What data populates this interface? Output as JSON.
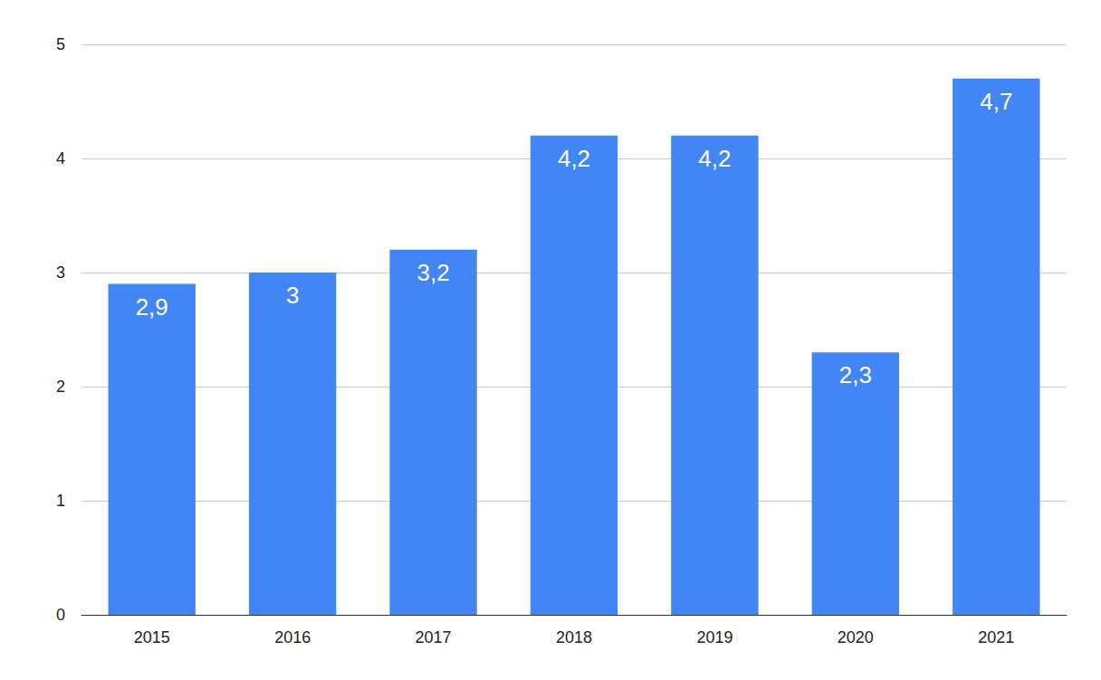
{
  "chart_data": {
    "type": "bar",
    "categories": [
      "2015",
      "2016",
      "2017",
      "2018",
      "2019",
      "2020",
      "2021"
    ],
    "values": [
      2.9,
      3,
      3.2,
      4.2,
      4.2,
      2.3,
      4.7
    ],
    "value_labels": [
      "2,9",
      "3",
      "3,2",
      "4,2",
      "4,2",
      "2,3",
      "4,7"
    ],
    "color": "#4285f4",
    "ylim": [
      0,
      5
    ],
    "yticks": [
      0,
      1,
      2,
      3,
      4,
      5
    ],
    "grid": true,
    "data_labels": true
  }
}
